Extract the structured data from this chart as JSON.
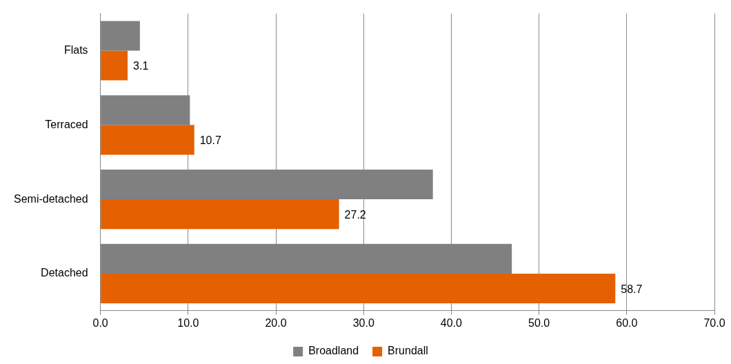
{
  "chart_data": {
    "type": "bar",
    "orientation": "horizontal",
    "categories": [
      "Flats",
      "Terraced",
      "Semi-detached",
      "Detached"
    ],
    "series": [
      {
        "name": "Broadland",
        "color": "#808080",
        "values": [
          4.5,
          10.2,
          37.9,
          46.9
        ]
      },
      {
        "name": "Brundall",
        "color": "#e46000",
        "values": [
          3.1,
          10.7,
          27.2,
          58.7
        ],
        "value_labels": [
          "3.1",
          "10.7",
          "27.2",
          "58.7"
        ]
      }
    ],
    "xlim": [
      0,
      70
    ],
    "xticks": [
      {
        "value": 0,
        "label": "0.0"
      },
      {
        "value": 10,
        "label": "10.0"
      },
      {
        "value": 20,
        "label": "20.0"
      },
      {
        "value": 30,
        "label": "30.0"
      },
      {
        "value": 40,
        "label": "40.0"
      },
      {
        "value": 50,
        "label": "50.0"
      },
      {
        "value": 60,
        "label": "60.0"
      },
      {
        "value": 70,
        "label": "70.0"
      }
    ],
    "grid": "x",
    "legend": "bottom"
  }
}
